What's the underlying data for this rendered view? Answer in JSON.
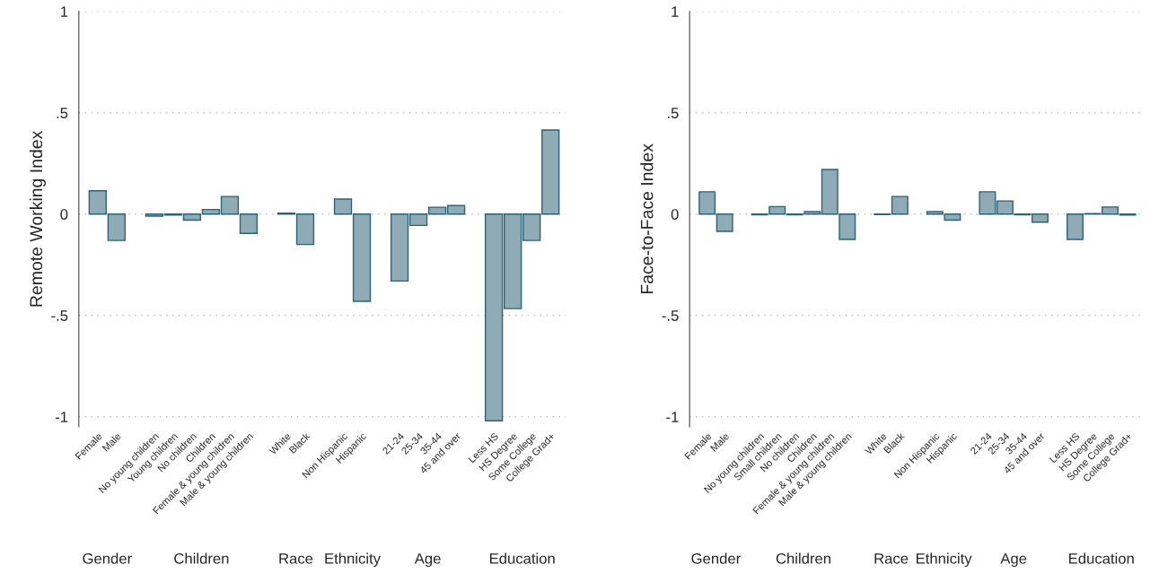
{
  "chart_data": [
    {
      "type": "bar",
      "ylabel": "Remote Working Index",
      "categories": [
        "Female",
        "Male",
        null,
        "No young children",
        "Young children",
        "No children",
        "Children",
        "Female & young children",
        "Male & young children",
        null,
        "White",
        "Black",
        null,
        "Non Hispanic",
        "Hispanic",
        null,
        "21-24",
        "25-34",
        "35-44",
        "45 and over",
        null,
        "Less HS",
        "HS Degree",
        "Some College",
        "College Grad+"
      ],
      "series": [
        {
          "color": "#8eabb6",
          "values": [
            0.115,
            -0.13,
            null,
            -0.01,
            -0.005,
            -0.03,
            0.023,
            0.087,
            -0.095,
            null,
            0.005,
            -0.15,
            null,
            0.074,
            -0.43,
            null,
            -0.33,
            -0.056,
            0.034,
            0.042,
            null,
            -1.02,
            -0.466,
            -0.13,
            0.415
          ]
        }
      ],
      "ylim": [
        -1.05,
        1.0
      ],
      "yticks": [
        {
          "value": -1,
          "label": "-1"
        },
        {
          "value": -0.5,
          "label": "-.5"
        },
        0,
        {
          "value": 0.5,
          "label": ".5"
        },
        1
      ],
      "grid": "y",
      "annotations": [
        "Gender",
        "Children",
        "Race",
        "Ethnicity",
        "Age",
        "Education"
      ]
    },
    {
      "type": "bar",
      "ylabel": "Face-to-Face Index",
      "categories": [
        "Female",
        "Male",
        null,
        "No young children",
        "Small children",
        "No children",
        "Children",
        "Female & young children",
        "Male & young children",
        null,
        "White",
        "Black",
        null,
        "Non Hispanic",
        "Hispanic",
        null,
        "21-24",
        "25-34",
        "35-44",
        "45 and over",
        null,
        "Less HS",
        "HS Degree",
        "Some College",
        "College Grad+"
      ],
      "series": [
        {
          "color": "#8eabb6",
          "values": [
            0.11,
            -0.085,
            null,
            -0.003,
            0.037,
            -0.003,
            0.012,
            0.22,
            -0.125,
            null,
            -0.002,
            0.087,
            null,
            0.012,
            -0.03,
            null,
            0.11,
            0.065,
            -0.003,
            -0.04,
            null,
            -0.125,
            0.003,
            0.035,
            -0.005
          ]
        }
      ],
      "ylim": [
        -1.05,
        1.0
      ],
      "yticks": [
        {
          "value": -1,
          "label": "-1"
        },
        {
          "value": -0.5,
          "label": "-.5"
        },
        0,
        {
          "value": 0.5,
          "label": ".5"
        },
        1
      ],
      "grid": "y",
      "annotations": [
        "Gender",
        "Children",
        "Race",
        "Ethnicity",
        "Age",
        "Education"
      ]
    }
  ]
}
